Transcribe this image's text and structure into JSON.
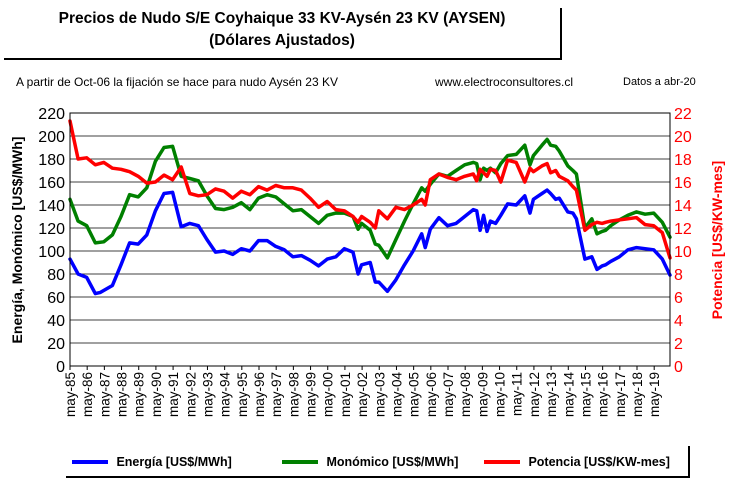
{
  "title": {
    "line1": "Precios de Nudo S/E Coyhaique 33 KV-Aysén 23 KV (AYSEN)",
    "line2": "(Dólares Ajustados)"
  },
  "notes": {
    "left": "A partir de Oct-06 la fijación se hace para nudo Aysén 23 KV",
    "center": "www.electroconsultores.cl",
    "right": "Datos a abr-20"
  },
  "colors": {
    "energia": "#0000ff",
    "monomico": "#008000",
    "potencia": "#ff0000"
  },
  "chart_data": {
    "type": "line",
    "title": "Precios de Nudo S/E Coyhaique 33 KV-Aysén 23 KV (AYSEN)",
    "subtitle": "(Dólares Ajustados)",
    "ylabel": "Energía, Monómico [US$/MWh]",
    "y2label": "Potencia [US$/KW-mes]",
    "ylim": [
      0,
      220
    ],
    "y2lim": [
      0,
      22
    ],
    "yticks": [
      0,
      20,
      40,
      60,
      80,
      100,
      120,
      140,
      160,
      180,
      200,
      220
    ],
    "y2ticks": [
      0,
      2,
      4,
      6,
      8,
      10,
      12,
      14,
      16,
      18,
      20,
      22
    ],
    "xticks": [
      "may-85",
      "may-86",
      "may-87",
      "may-88",
      "may-89",
      "may-90",
      "may-91",
      "may-92",
      "may-93",
      "may-94",
      "may-95",
      "may-96",
      "may-97",
      "may-98",
      "may-99",
      "may-00",
      "may-01",
      "may-02",
      "may-03",
      "may-04",
      "may-05",
      "may-06",
      "may-07",
      "may-08",
      "may-09",
      "may-10",
      "may-11",
      "may-12",
      "may-13",
      "may-14",
      "may-15",
      "may-16",
      "may-17",
      "may-18",
      "may-19"
    ],
    "xlim": [
      1985.33,
      2020.25
    ],
    "grid": true,
    "legend_position": "bottom",
    "series": [
      {
        "name": "Energía [US$/MWh]",
        "axis": "left",
        "x": [
          1985.33,
          1985.8,
          1986.3,
          1986.8,
          1987.1,
          1987.8,
          1988.3,
          1988.8,
          1989.3,
          1989.8,
          1990.3,
          1990.8,
          1991.3,
          1991.8,
          1992.3,
          1992.8,
          1993.3,
          1993.8,
          1994.3,
          1994.8,
          1995.3,
          1995.8,
          1996.3,
          1996.8,
          1997.3,
          1997.8,
          1998.3,
          1998.8,
          1999.3,
          1999.8,
          2000.3,
          2000.8,
          2001.3,
          2001.8,
          2002.1,
          2002.3,
          2002.8,
          2003.1,
          2003.3,
          2003.8,
          2004.3,
          2004.8,
          2005.3,
          2005.8,
          2006.0,
          2006.3,
          2006.8,
          2007.3,
          2007.8,
          2008.3,
          2008.8,
          2009.0,
          2009.2,
          2009.4,
          2009.6,
          2009.8,
          2010.1,
          2010.4,
          2010.8,
          2011.3,
          2011.8,
          2012.1,
          2012.3,
          2012.8,
          2013.1,
          2013.3,
          2013.6,
          2013.8,
          2014.3,
          2014.6,
          2014.8,
          2015.3,
          2015.7,
          2016.0,
          2016.3,
          2016.5,
          2016.8,
          2017.3,
          2017.8,
          2018.3,
          2018.8,
          2019.3,
          2019.8,
          2020.25
        ],
        "values": [
          93,
          80,
          77,
          63,
          64,
          70,
          88,
          107,
          106,
          114,
          135,
          150,
          151,
          121,
          124,
          122,
          110,
          99,
          100,
          97,
          102,
          100,
          109,
          109,
          104,
          101,
          95,
          96,
          92,
          87,
          93,
          95,
          102,
          99,
          80,
          88,
          90,
          73,
          73,
          65,
          75,
          88,
          100,
          115,
          103,
          119,
          129,
          122,
          124,
          130,
          136,
          135,
          118,
          131,
          117,
          126,
          124,
          131,
          141,
          140,
          148,
          133,
          145,
          150,
          153,
          150,
          145,
          146,
          134,
          133,
          128,
          93,
          95,
          84,
          87,
          88,
          91,
          95,
          101,
          103,
          102,
          101,
          93,
          79
        ]
      },
      {
        "name": "Monómico [US$/MWh]",
        "axis": "left",
        "x": [
          1985.33,
          1985.8,
          1986.3,
          1986.8,
          1987.3,
          1987.8,
          1988.3,
          1988.8,
          1989.3,
          1989.8,
          1990.3,
          1990.8,
          1991.3,
          1991.8,
          1992.3,
          1992.8,
          1993.3,
          1993.8,
          1994.3,
          1994.8,
          1995.3,
          1995.8,
          1996.3,
          1996.8,
          1997.3,
          1997.8,
          1998.3,
          1998.8,
          1999.3,
          1999.8,
          2000.3,
          2000.8,
          2001.3,
          2001.8,
          2002.1,
          2002.3,
          2002.8,
          2003.1,
          2003.3,
          2003.8,
          2004.3,
          2004.8,
          2005.3,
          2005.8,
          2006.0,
          2006.3,
          2006.8,
          2007.3,
          2007.8,
          2008.3,
          2008.8,
          2009.0,
          2009.2,
          2009.4,
          2009.6,
          2009.8,
          2010.1,
          2010.4,
          2010.8,
          2011.3,
          2011.8,
          2012.1,
          2012.3,
          2012.8,
          2013.1,
          2013.3,
          2013.6,
          2013.8,
          2014.3,
          2014.6,
          2014.8,
          2015.3,
          2015.7,
          2016.0,
          2016.3,
          2016.5,
          2016.8,
          2017.3,
          2017.8,
          2018.3,
          2018.8,
          2019.3,
          2019.8,
          2020.25
        ],
        "values": [
          145,
          126,
          122,
          107,
          108,
          114,
          130,
          149,
          147,
          155,
          178,
          190,
          191,
          165,
          163,
          161,
          148,
          137,
          136,
          138,
          142,
          136,
          146,
          149,
          147,
          141,
          135,
          136,
          130,
          124,
          131,
          133,
          133,
          130,
          119,
          124,
          118,
          106,
          105,
          94,
          110,
          126,
          141,
          155,
          152,
          158,
          167,
          165,
          170,
          175,
          177,
          176,
          162,
          172,
          170,
          172,
          168,
          176,
          183,
          184,
          192,
          175,
          183,
          192,
          197,
          192,
          191,
          187,
          174,
          170,
          167,
          120,
          128,
          115,
          117,
          118,
          122,
          127,
          131,
          134,
          132,
          133,
          125,
          112
        ]
      },
      {
        "name": "Potencia [US$/KW-mes]",
        "axis": "right",
        "x": [
          1985.33,
          1985.8,
          1986.3,
          1986.8,
          1987.3,
          1987.8,
          1988.3,
          1988.8,
          1989.3,
          1989.8,
          1990.3,
          1990.8,
          1991.3,
          1991.8,
          1992.3,
          1992.8,
          1993.3,
          1993.8,
          1994.3,
          1994.8,
          1995.3,
          1995.8,
          1996.3,
          1996.8,
          1997.3,
          1997.8,
          1998.3,
          1998.8,
          1999.3,
          1999.8,
          2000.3,
          2000.8,
          2001.3,
          2001.8,
          2002.1,
          2002.3,
          2002.8,
          2003.1,
          2003.3,
          2003.8,
          2004.3,
          2004.8,
          2005.3,
          2005.8,
          2006.0,
          2006.3,
          2006.8,
          2007.3,
          2007.8,
          2008.3,
          2008.8,
          2009.0,
          2009.2,
          2009.4,
          2009.6,
          2009.8,
          2010.1,
          2010.4,
          2010.8,
          2011.3,
          2011.8,
          2012.1,
          2012.3,
          2012.8,
          2013.1,
          2013.3,
          2013.6,
          2013.8,
          2014.3,
          2014.6,
          2014.8,
          2015.3,
          2015.7,
          2016.0,
          2016.3,
          2016.5,
          2016.8,
          2017.3,
          2017.8,
          2018.3,
          2018.8,
          2019.3,
          2019.8,
          2020.25
        ],
        "values": [
          21.3,
          18.0,
          18.1,
          17.5,
          17.7,
          17.2,
          17.1,
          16.9,
          16.5,
          15.9,
          16.0,
          16.6,
          16.2,
          17.3,
          15.0,
          14.8,
          14.9,
          15.4,
          15.2,
          14.6,
          15.2,
          14.9,
          15.6,
          15.3,
          15.7,
          15.5,
          15.5,
          15.3,
          14.6,
          13.8,
          14.3,
          13.6,
          13.5,
          13.0,
          12.5,
          13.0,
          12.5,
          12.0,
          13.5,
          12.8,
          13.8,
          13.6,
          14.0,
          14.5,
          14.0,
          16.2,
          16.7,
          16.4,
          16.2,
          16.5,
          16.7,
          16.1,
          17.1,
          16.8,
          16.5,
          17.1,
          17.0,
          16.0,
          17.9,
          17.7,
          16.0,
          17.2,
          16.9,
          17.4,
          17.6,
          16.8,
          17.0,
          16.5,
          16.1,
          15.6,
          15.3,
          11.8,
          12.3,
          12.5,
          12.4,
          12.5,
          12.6,
          12.7,
          12.8,
          12.9,
          12.3,
          12.2,
          11.6,
          9.4
        ]
      }
    ]
  },
  "legend": {
    "energia": "Energía [US$/MWh]",
    "monomico": "Monómico [US$/MWh]",
    "potencia": "Potencia [US$/KW-mes]"
  }
}
